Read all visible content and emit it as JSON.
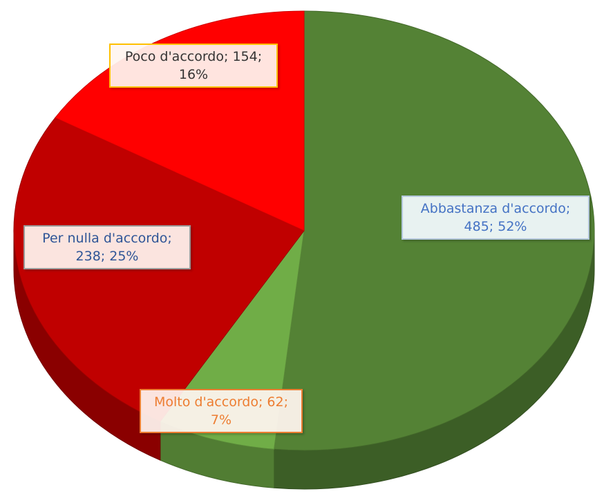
{
  "chart_data": {
    "type": "pie",
    "values": [
      485,
      62,
      238,
      154
    ],
    "value_labels": [
      "Abbastanza d'accordo; 485; 52%",
      "Molto d'accordo; 62; 7%",
      "Per nulla d'accordo; 238; 25%",
      "Poco d'accordo; 154; 16%"
    ],
    "colors": [
      "#548235",
      "#70ad47",
      "#c00000",
      "#ff0000"
    ]
  }
}
